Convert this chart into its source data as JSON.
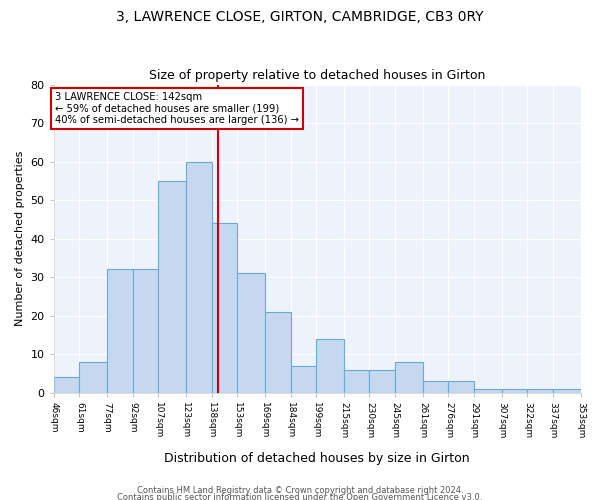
{
  "title1": "3, LAWRENCE CLOSE, GIRTON, CAMBRIDGE, CB3 0RY",
  "title2": "Size of property relative to detached houses in Girton",
  "xlabel": "Distribution of detached houses by size in Girton",
  "ylabel": "Number of detached properties",
  "footnote1": "Contains HM Land Registry data © Crown copyright and database right 2024.",
  "footnote2": "Contains public sector information licensed under the Open Government Licence v3.0.",
  "annotation_line1": "3 LAWRENCE CLOSE: 142sqm",
  "annotation_line2": "← 59% of detached houses are smaller (199)",
  "annotation_line3": "40% of semi-detached houses are larger (136) →",
  "bar_edges": [
    46,
    61,
    77,
    92,
    107,
    123,
    138,
    153,
    169,
    184,
    199,
    215,
    230,
    245,
    261,
    276,
    291,
    307,
    322,
    337,
    353
  ],
  "bar_heights": [
    4,
    8,
    32,
    32,
    55,
    60,
    44,
    31,
    21,
    7,
    14,
    6,
    6,
    8,
    3,
    3,
    1,
    1,
    1,
    1
  ],
  "property_line_x": 142,
  "bar_color": "#c5d8f0",
  "bar_edge_color": "#6aaad4",
  "line_color": "#cc0000",
  "ylim": [
    0,
    80
  ],
  "yticks": [
    0,
    10,
    20,
    30,
    40,
    50,
    60,
    70,
    80
  ],
  "bg_color": "#eef2fb"
}
